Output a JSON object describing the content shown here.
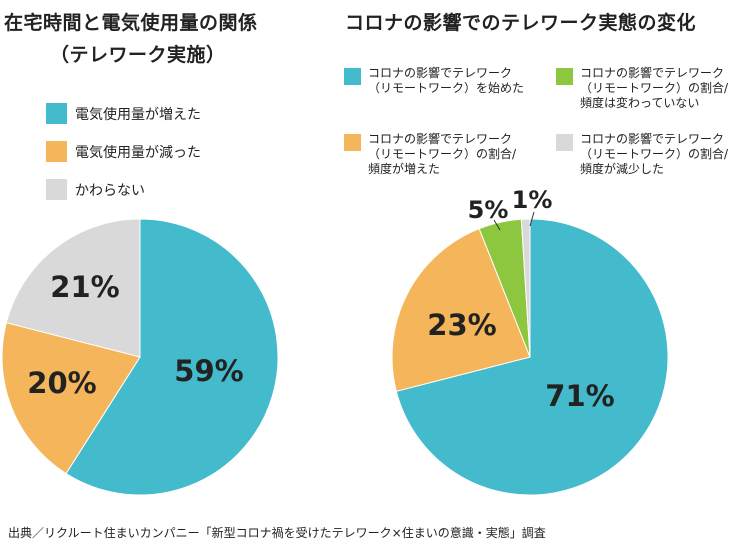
{
  "left": {
    "title_line1": "在宅時間と電気使用量の関係",
    "title_line2": "（テレワーク実施）",
    "legend": [
      {
        "label": "電気使用量が増えた",
        "color": "#44bbcc"
      },
      {
        "label": "電気使用量が減った",
        "color": "#f5b55a"
      },
      {
        "label": "かわらない",
        "color": "#d9d9d9"
      }
    ]
  },
  "right": {
    "title": "コロナの影響でのテレワーク実態の変化",
    "legend": [
      {
        "label": "コロナの影響でテレワーク\n（リモートワーク）を始めた",
        "color": "#44bbcc"
      },
      {
        "label": "コロナの影響でテレワーク\n（リモートワーク）の割合/\n頻度は変わっていない",
        "color": "#8dc63f"
      },
      {
        "label": "コロナの影響でテレワーク\n（リモートワーク）の割合/\n頻度が増えた",
        "color": "#f5b55a"
      },
      {
        "label": "コロナの影響でテレワーク\n（リモートワーク）の割合/\n頻度が減少した",
        "color": "#d9d9d9"
      }
    ]
  },
  "source": "出典／リクルート住まいカンパニー「新型コロナ禍を受けたテレワーク×住まいの意識・実態」調査",
  "chart_data": [
    {
      "type": "pie",
      "title": "在宅時間と電気使用量の関係（テレワーク実施）",
      "slices": [
        {
          "label": "電気使用量が増えた",
          "value": 59,
          "display": "59%",
          "color": "#44bbcc"
        },
        {
          "label": "電気使用量が減った",
          "value": 20,
          "display": "20%",
          "color": "#f5b55a"
        },
        {
          "label": "かわらない",
          "value": 21,
          "display": "21%",
          "color": "#d9d9d9"
        }
      ]
    },
    {
      "type": "pie",
      "title": "コロナの影響でのテレワーク実態の変化",
      "slices": [
        {
          "label": "コロナの影響でテレワーク（リモートワーク）を始めた",
          "value": 71,
          "display": "71%",
          "color": "#44bbcc"
        },
        {
          "label": "コロナの影響でテレワーク（リモートワーク）の割合/頻度が増えた",
          "value": 23,
          "display": "23%",
          "color": "#f5b55a"
        },
        {
          "label": "コロナの影響でテレワーク（リモートワーク）の割合/頻度は変わっていない",
          "value": 5,
          "display": "5%",
          "color": "#8dc63f"
        },
        {
          "label": "コロナの影響でテレワーク（リモートワーク）の割合/頻度が減少した",
          "value": 1,
          "display": "1%",
          "color": "#d9d9d9"
        }
      ]
    }
  ]
}
